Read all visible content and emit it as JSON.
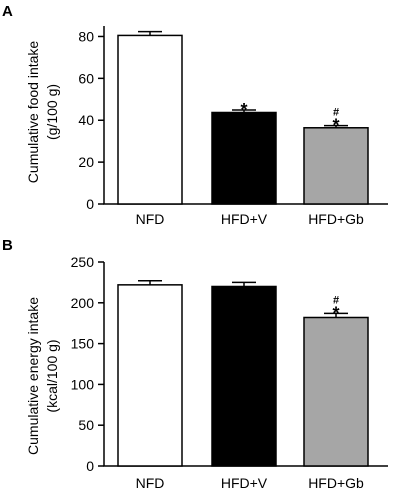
{
  "chart_data": [
    {
      "panel": "A",
      "type": "bar",
      "categories": [
        "NFD",
        "HFD+V",
        "HFD+Gb"
      ],
      "values": [
        80.5,
        43.7,
        36.4
      ],
      "errors": [
        1.8,
        1.2,
        1.0
      ],
      "colors": [
        "#ffffff",
        "#000000",
        "#a6a6a6"
      ],
      "ylabel_line1": "Cumulative food intake",
      "ylabel_line2": "(g/100 g)",
      "ylim": [
        0,
        85
      ],
      "yticks": [
        "0",
        "20",
        "40",
        "60",
        "80"
      ],
      "annotations": [
        {
          "category": "HFD+V",
          "marks": [
            "*"
          ]
        },
        {
          "category": "HFD+Gb",
          "marks": [
            "*",
            "#"
          ]
        }
      ]
    },
    {
      "panel": "B",
      "type": "bar",
      "categories": [
        "NFD",
        "HFD+V",
        "HFD+Gb"
      ],
      "values": [
        222,
        220,
        182
      ],
      "errors": [
        5,
        5,
        5
      ],
      "colors": [
        "#ffffff",
        "#000000",
        "#a6a6a6"
      ],
      "ylabel_line1": "Cumulative energy intake",
      "ylabel_line2": "(kcal/100 g)",
      "ylim": [
        0,
        250
      ],
      "yticks": [
        "0",
        "50",
        "100",
        "150",
        "200",
        "250"
      ],
      "annotations": [
        {
          "category": "HFD+Gb",
          "marks": [
            "*",
            "#"
          ]
        }
      ]
    }
  ]
}
